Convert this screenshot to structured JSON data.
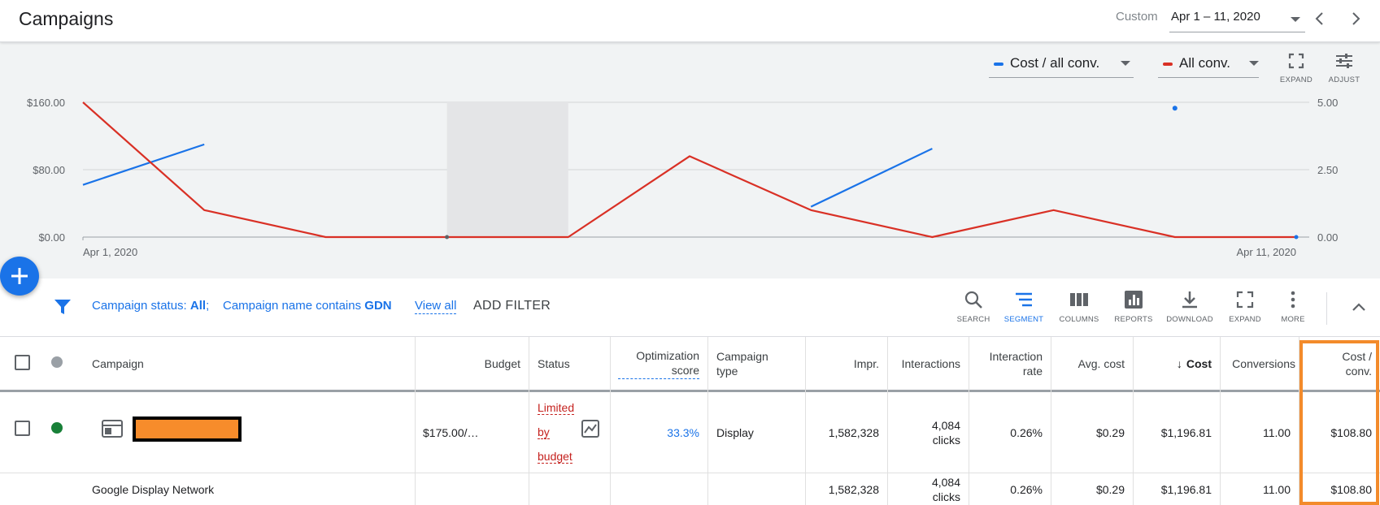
{
  "header": {
    "title": "Campaigns",
    "range_label": "Custom",
    "date_range": "Apr 1 – 11, 2020"
  },
  "chart_controls": {
    "metric1": {
      "label": "Cost / all conv.",
      "color": "#1a73e8"
    },
    "metric2": {
      "label": "All conv.",
      "color": "#d93025"
    },
    "expand_label": "EXPAND",
    "adjust_label": "ADJUST"
  },
  "chart_data": {
    "type": "line",
    "x_start_label": "Apr 1, 2020",
    "x_end_label": "Apr 11, 2020",
    "x": [
      "Apr 1",
      "Apr 2",
      "Apr 3",
      "Apr 4",
      "Apr 5",
      "Apr 6",
      "Apr 7",
      "Apr 8",
      "Apr 9",
      "Apr 10",
      "Apr 11"
    ],
    "y_left_ticks": [
      "$160.00",
      "$80.00",
      "$0.00"
    ],
    "y_right_ticks": [
      "5.00",
      "2.50",
      "0.00"
    ],
    "y_left_range": [
      0,
      160
    ],
    "y_right_range": [
      0,
      5
    ],
    "shaded_day_index": 4,
    "series": [
      {
        "name": "Cost / all conv.",
        "axis": "left",
        "color": "#1a73e8",
        "values": [
          62,
          110,
          null,
          null,
          null,
          null,
          36,
          105,
          null,
          153,
          null
        ]
      },
      {
        "name": "All conv.",
        "axis": "right",
        "color": "#d93025",
        "values": [
          5,
          1,
          0,
          0,
          0,
          3,
          1,
          0,
          1,
          0,
          0
        ]
      }
    ]
  },
  "filter": {
    "status_label": "Campaign status:",
    "status_value": "All",
    "sep": ";",
    "name_label": "Campaign name contains",
    "name_value": "GDN",
    "view_all": "View all",
    "add_filter": "ADD FILTER"
  },
  "toolbar": {
    "search": "SEARCH",
    "segment": "SEGMENT",
    "columns": "COLUMNS",
    "reports": "REPORTS",
    "download": "DOWNLOAD",
    "expand": "EXPAND",
    "more": "MORE"
  },
  "table": {
    "headers": {
      "campaign": "Campaign",
      "budget": "Budget",
      "status": "Status",
      "opt_line1": "Optimization",
      "opt_line2": "score",
      "type_line1": "Campaign",
      "type_line2": "type",
      "impr": "Impr.",
      "interactions": "Interactions",
      "ir_line1": "Interaction",
      "ir_line2": "rate",
      "avg_cost": "Avg. cost",
      "cost_arrow": "↓",
      "cost": "Cost",
      "conversions": "Conversions",
      "cpc_line1": "Cost /",
      "cpc_line2": "conv."
    },
    "row1": {
      "budget": "$175.00/…",
      "status_1": "Limited",
      "status_2": "by",
      "status_3": "budget",
      "opt_score": "33.3%",
      "type": "Display",
      "impr": "1,582,328",
      "interactions_1": "4,084",
      "interactions_2": "clicks",
      "interaction_rate": "0.26%",
      "avg_cost": "$0.29",
      "cost": "$1,196.81",
      "conversions": "11.00",
      "cost_per_conv": "$108.80"
    },
    "row2": {
      "campaign": "Google Display Network",
      "impr": "1,582,328",
      "interactions_1": "4,084",
      "interactions_2": "clicks",
      "interaction_rate": "0.26%",
      "avg_cost": "$0.29",
      "cost": "$1,196.81",
      "conversions": "11.00",
      "cost_per_conv": "$108.80"
    }
  }
}
